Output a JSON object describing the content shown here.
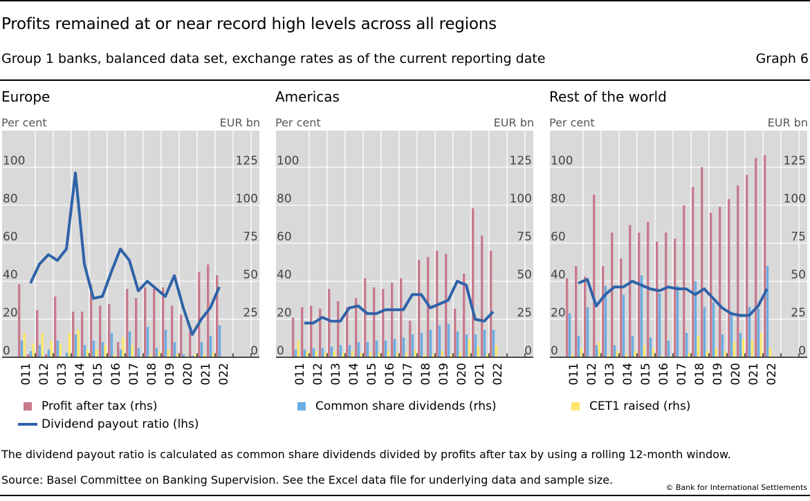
{
  "header": {
    "title": "Profits remained at or near record high levels across all regions",
    "subtitle": "Group 1 banks, balanced data set, exchange rates as of the current reporting date",
    "graph_number": "Graph 6"
  },
  "footer": {
    "note": "The dividend payout ratio is calculated as common share dividends divided by profits after tax by using a rolling 12-month window.",
    "source": "Source: Basel Committee on Banking Supervision. See the Excel data file for underlying data and sample size.",
    "copyright": "© Bank for International Settlements"
  },
  "colors": {
    "profit": "#c77a8c",
    "dividends": "#6aaee4",
    "cet1": "#fde76c",
    "payout": "#2e62a8",
    "plot_bg": "#d9d9d9"
  },
  "legend": [
    {
      "label": "Profit after tax (rhs)",
      "type": "bar",
      "series": "profit"
    },
    {
      "label": "Dividend payout ratio (lhs)",
      "type": "line",
      "series": "payout"
    },
    {
      "label": "Common share dividends (rhs)",
      "type": "bar",
      "series": "dividends"
    },
    {
      "label": "CET1 raised (rhs)",
      "type": "bar",
      "series": "cet1"
    }
  ],
  "chart_data": [
    {
      "type": "bar",
      "title": "Europe",
      "ylabel_left": "Per cent",
      "ylabel_right": "EUR bn",
      "ylim_left": [
        0,
        100
      ],
      "ylim_right": [
        0,
        125
      ],
      "yticks_left": [
        "0",
        "20",
        "40",
        "60",
        "80",
        "100"
      ],
      "yticks_right": [
        "0",
        "25",
        "50",
        "75",
        "100",
        "125"
      ],
      "categories": [
        "2011",
        "2012",
        "2013",
        "2014",
        "2015",
        "2016",
        "2017",
        "2018",
        "2019",
        "2020",
        "2021",
        "2022"
      ],
      "periods_per_category": 2,
      "grid": true,
      "series": [
        {
          "name": "Profit after tax (rhs)",
          "axis": "right",
          "values": [
            48,
            2,
            31,
            2,
            40,
            0,
            30,
            30,
            48,
            34,
            35,
            10,
            45,
            39,
            46,
            45,
            46,
            34,
            28,
            17,
            56,
            61,
            54
          ]
        },
        {
          "name": "Common share dividends (rhs)",
          "axis": "right",
          "values": [
            11,
            4,
            8,
            5,
            11,
            3,
            15,
            8,
            11,
            10,
            16,
            5,
            17,
            6,
            20,
            6,
            18,
            10,
            2,
            1,
            10,
            14,
            21
          ]
        },
        {
          "name": "CET1 raised (rhs)",
          "axis": "right",
          "values": [
            16,
            9,
            16,
            11,
            9,
            16,
            18,
            5,
            5,
            8,
            2,
            13,
            8,
            1,
            2,
            4,
            5,
            2,
            1,
            2,
            2,
            3,
            0
          ]
        },
        {
          "name": "Dividend payout ratio (lhs)",
          "axis": "left",
          "type": "line",
          "start_index": 1,
          "values": [
            39,
            49,
            54,
            51,
            57,
            97,
            49,
            31,
            32,
            45,
            57,
            51,
            35,
            40,
            36,
            32,
            43,
            26,
            12,
            20,
            26,
            37
          ]
        }
      ]
    },
    {
      "type": "bar",
      "title": "Americas",
      "ylabel_left": "Per cent",
      "ylabel_right": "EUR bn",
      "ylim_left": [
        0,
        100
      ],
      "ylim_right": [
        0,
        125
      ],
      "yticks_left": [
        "0",
        "20",
        "40",
        "60",
        "80",
        "100"
      ],
      "yticks_right": [
        "0",
        "25",
        "50",
        "75",
        "100",
        "125"
      ],
      "categories": [
        "2011",
        "2012",
        "2013",
        "2014",
        "2015",
        "2016",
        "2017",
        "2018",
        "2019",
        "2020",
        "2021",
        "2022"
      ],
      "periods_per_category": 2,
      "grid": true,
      "series": [
        {
          "name": "Profit after tax (rhs)",
          "axis": "right",
          "values": [
            26,
            33,
            34,
            32,
            45,
            37,
            33,
            39,
            52,
            46,
            45,
            49,
            52,
            24,
            64,
            66,
            70,
            68,
            32,
            55,
            98,
            80,
            70
          ]
        },
        {
          "name": "Common share dividends (rhs)",
          "axis": "right",
          "values": [
            5,
            5,
            6,
            6,
            7,
            8,
            8,
            10,
            10,
            11,
            11,
            12,
            13,
            15,
            16,
            18,
            21,
            22,
            17,
            15,
            15,
            18,
            18
          ]
        },
        {
          "name": "CET1 raised (rhs)",
          "axis": "right",
          "values": [
            11,
            4,
            4,
            3,
            4,
            3,
            4,
            3,
            3,
            3,
            4,
            3,
            3,
            5,
            2,
            2,
            4,
            2,
            3,
            12,
            7,
            2,
            8
          ]
        },
        {
          "name": "Dividend payout ratio (lhs)",
          "axis": "left",
          "type": "line",
          "start_index": 1,
          "values": [
            18,
            18,
            21,
            19,
            19,
            26,
            27,
            23,
            23,
            25,
            25,
            25,
            33,
            33,
            26,
            28,
            30,
            40,
            38,
            20,
            19,
            24
          ]
        }
      ]
    },
    {
      "type": "bar",
      "title": "Rest of the world",
      "ylabel_left": "Per cent",
      "ylabel_right": "EUR bn",
      "ylim_left": [
        0,
        100
      ],
      "ylim_right": [
        0,
        125
      ],
      "yticks_left": [
        "0",
        "20",
        "40",
        "60",
        "80",
        "100"
      ],
      "yticks_right": [
        "0",
        "25",
        "50",
        "75",
        "100",
        "125"
      ],
      "categories": [
        "2011",
        "2012",
        "2013",
        "2014",
        "2015",
        "2016",
        "2017",
        "2018",
        "2019",
        "2020",
        "2021",
        "2022"
      ],
      "periods_per_category": 2,
      "grid": true,
      "series": [
        {
          "name": "Profit after tax (rhs)",
          "axis": "right",
          "values": [
            52,
            60,
            53,
            107,
            60,
            82,
            65,
            87,
            82,
            89,
            76,
            82,
            78,
            100,
            112,
            125,
            95,
            99,
            104,
            113,
            120,
            131,
            133
          ]
        },
        {
          "name": "Common share dividends (rhs)",
          "axis": "right",
          "values": [
            29,
            14,
            33,
            8,
            47,
            8,
            41,
            14,
            54,
            13,
            42,
            11,
            47,
            16,
            50,
            33,
            36,
            15,
            30,
            16,
            33,
            32,
            60
          ]
        },
        {
          "name": "CET1 raised (rhs)",
          "axis": "right",
          "values": [
            2,
            6,
            0,
            10,
            2,
            4,
            2,
            4,
            8,
            6,
            1,
            1,
            0,
            3,
            14,
            4,
            6,
            4,
            10,
            12,
            11,
            16,
            6
          ]
        },
        {
          "name": "Dividend payout ratio (lhs)",
          "axis": "left",
          "type": "line",
          "start_index": 1,
          "values": [
            39,
            41,
            27,
            33,
            37,
            37,
            40,
            38,
            36,
            35,
            37,
            36,
            36,
            33,
            36,
            31,
            26,
            23,
            22,
            22,
            27,
            36
          ]
        }
      ]
    }
  ]
}
